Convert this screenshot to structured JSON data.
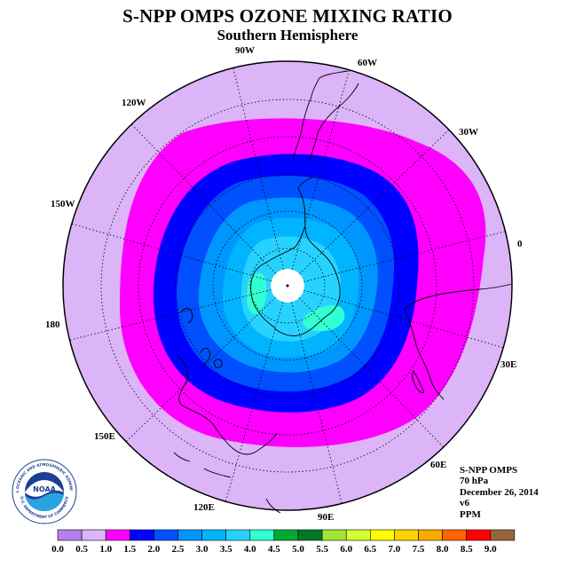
{
  "title": "S-NPP OMPS OZONE MIXING RATIO",
  "subtitle": "Southern Hemisphere",
  "longitude_labels": [
    "90W",
    "60W",
    "30W",
    "0",
    "30E",
    "60E",
    "90E",
    "120E",
    "150E",
    "180",
    "150W",
    "120W"
  ],
  "info": {
    "instrument": "S-NPP OMPS",
    "level": "70 hPa",
    "date": "December 26, 2014",
    "version": "v6",
    "units": "PPM"
  },
  "logo": {
    "text": "NOAA",
    "ring_text": "NATIONAL OCEANIC AND ATMOSPHERIC ADMINISTRATION",
    "ring_text_bottom": "U.S. DEPARTMENT OF COMMERCE"
  },
  "legend": {
    "ticks": [
      "0.0",
      "0.5",
      "1.0",
      "1.5",
      "2.0",
      "2.5",
      "3.0",
      "3.5",
      "4.0",
      "4.5",
      "5.0",
      "5.5",
      "6.0",
      "6.5",
      "7.0",
      "7.5",
      "8.0",
      "8.5",
      "9.0"
    ],
    "colors": [
      "#b57ff0",
      "#dcb4f8",
      "#ff00ff",
      "#0000ff",
      "#0050ff",
      "#0096ff",
      "#00b4ff",
      "#28d2ff",
      "#32ffd2",
      "#00aa32",
      "#007828",
      "#a0e632",
      "#d2ff32",
      "#ffff00",
      "#ffd200",
      "#ffaa00",
      "#ff6400",
      "#ff0000",
      "#96643c"
    ]
  },
  "colors": {
    "band_0_5": "#dcb4f8",
    "band_1_0": "#ff00ff",
    "band_1_5": "#0000ff",
    "band_2_0": "#0050ff",
    "band_2_5": "#0096ff",
    "band_3_0": "#00b4ff",
    "band_3_5": "#28d2ff",
    "band_4_0": "#32ffd2",
    "pole_mask": "#ffffff"
  }
}
